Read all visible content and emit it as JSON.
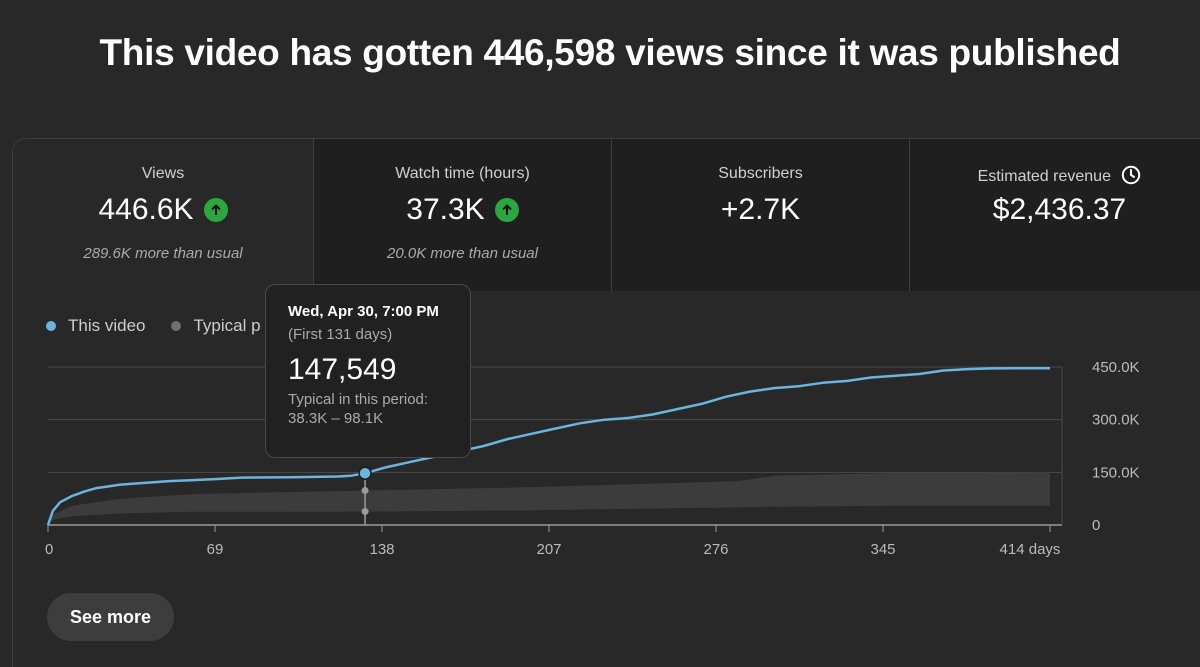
{
  "headline": "This video has gotten 446,598 views since it was published",
  "tabs": [
    {
      "label": "Views",
      "value": "446.6K",
      "trend": "up",
      "note": "289.6K more than usual"
    },
    {
      "label": "Watch time (hours)",
      "value": "37.3K",
      "trend": "up",
      "note": "20.0K more than usual"
    },
    {
      "label": "Subscribers",
      "value": "+2.7K",
      "trend": "",
      "note": ""
    },
    {
      "label": "Estimated revenue",
      "value": "$2,436.37",
      "trend": "",
      "note": "",
      "icon": "clock-icon"
    }
  ],
  "legend": {
    "this_video": "This video",
    "typical": "Typical p"
  },
  "colors": {
    "this_video": "#6cb4de",
    "typical": "#707070",
    "up": "#2ba640"
  },
  "tooltip": {
    "date": "Wed, Apr 30, 7:00 PM",
    "period": "(First 131 days)",
    "value": "147,549",
    "typical_label": "Typical in this period:",
    "typical_range": "38.3K – 98.1K"
  },
  "see_more": "See more",
  "chart_data": {
    "type": "line",
    "x_unit": "days",
    "xlim": [
      0,
      414
    ],
    "ylim": [
      0,
      450000
    ],
    "x_ticks": [
      0,
      69,
      138,
      207,
      276,
      345,
      414
    ],
    "x_tick_labels": [
      "0",
      "69",
      "138",
      "207",
      "276",
      "345",
      "414 days"
    ],
    "y_ticks": [
      0,
      150000,
      300000,
      450000
    ],
    "y_tick_labels": [
      "0",
      "150.0K",
      "300.0K",
      "450.0K"
    ],
    "series": [
      {
        "name": "This video",
        "x": [
          0,
          2,
          5,
          10,
          15,
          20,
          30,
          40,
          50,
          60,
          70,
          80,
          100,
          110,
          120,
          125,
          131,
          140,
          150,
          160,
          170,
          180,
          190,
          200,
          210,
          220,
          230,
          240,
          250,
          260,
          270,
          280,
          290,
          300,
          310,
          320,
          330,
          340,
          350,
          360,
          370,
          380,
          390,
          400,
          410,
          414
        ],
        "y": [
          0,
          40000,
          65000,
          83000,
          95000,
          105000,
          115000,
          120000,
          125000,
          128000,
          131000,
          135000,
          136000,
          137000,
          138000,
          140000,
          147549,
          165000,
          180000,
          195000,
          210000,
          225000,
          245000,
          260000,
          275000,
          290000,
          300000,
          305000,
          315000,
          330000,
          345000,
          365000,
          380000,
          390000,
          395000,
          405000,
          410000,
          420000,
          425000,
          430000,
          440000,
          444000,
          446000,
          446400,
          446598,
          446598
        ]
      },
      {
        "name": "Typical p",
        "x": [
          0,
          2,
          10,
          30,
          60,
          100,
          131,
          200,
          250,
          285,
          300,
          350,
          414
        ],
        "y_low": [
          0,
          15000,
          25000,
          33000,
          38000,
          38000,
          38300,
          42000,
          47000,
          50000,
          52000,
          55000,
          55000
        ],
        "y_high": [
          0,
          30000,
          55000,
          75000,
          88000,
          94000,
          98100,
          108000,
          118000,
          125000,
          140000,
          148000,
          150000
        ]
      }
    ],
    "highlight": {
      "x": 131,
      "y": 147549,
      "typical_low": 38300,
      "typical_high": 98100
    }
  }
}
